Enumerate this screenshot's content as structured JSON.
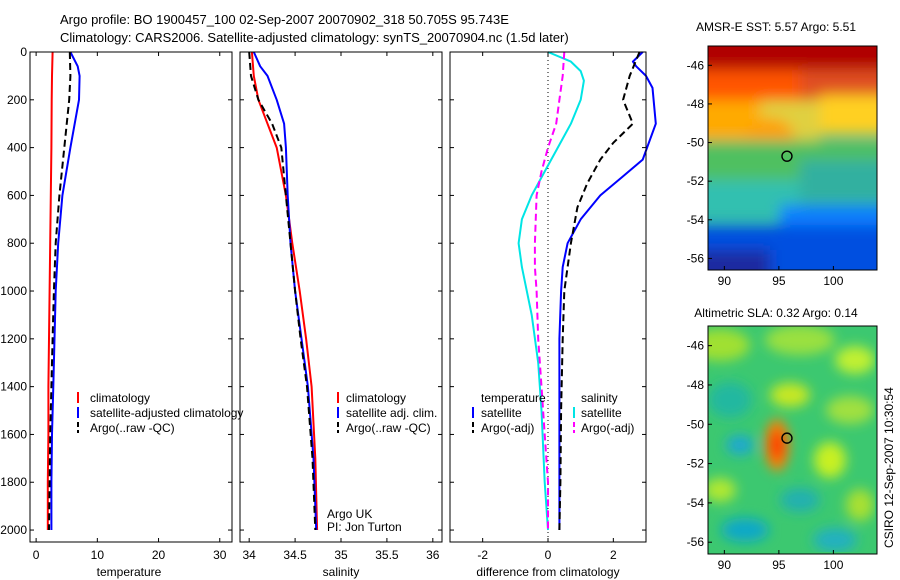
{
  "header": {
    "line1": "Argo profile: BO 1900457_100 02-Sep-2007 20070902_318 50.705S 95.743E",
    "line2": "Climatology: CARS2006. Satellite-adjusted climatology: synTS_20070904.nc (1.5d later)"
  },
  "credit": "CSIRO 12-Sep-2007 10:30:54",
  "colors": {
    "red": "#ff0000",
    "blue": "#0000ff",
    "black": "#000000",
    "cyan": "#00e5e5",
    "magenta": "#ff00ff"
  },
  "chart_data": [
    {
      "type": "line",
      "xlabel": "temperature",
      "xlim": [
        -1,
        32
      ],
      "ylim": [
        0,
        2050
      ],
      "xticks": [
        "0",
        "10",
        "20",
        "30"
      ],
      "xtick_values": [
        0,
        10,
        20,
        30
      ],
      "yticks": [
        "0",
        "200",
        "400",
        "600",
        "800",
        "1000",
        "1200",
        "1400",
        "1600",
        "1800",
        "2000"
      ],
      "y_reversed": true,
      "legend_position": "lower-right",
      "series": [
        {
          "name": "climatology",
          "color": "red",
          "style": "solid",
          "x": [
            2.7,
            2.6,
            2.55,
            2.5,
            2.4,
            2.3,
            2.2,
            2.1,
            2.0,
            2.0,
            1.9,
            1.9
          ],
          "y": [
            0,
            100,
            200,
            400,
            600,
            800,
            1000,
            1200,
            1400,
            1600,
            1800,
            2000
          ]
        },
        {
          "name": "satellite-adjusted climatology",
          "color": "blue",
          "style": "solid",
          "x": [
            5.6,
            6.8,
            7.1,
            7.0,
            5.6,
            4.3,
            3.6,
            3.2,
            3.0,
            2.8,
            2.6,
            2.5,
            2.5
          ],
          "y": [
            0,
            60,
            100,
            200,
            400,
            600,
            800,
            1000,
            1200,
            1400,
            1600,
            1800,
            2000
          ]
        },
        {
          "name": "Argo(..raw -QC)",
          "color": "black",
          "style": "dashed",
          "x": [
            5.5,
            5.6,
            5.4,
            4.6,
            3.8,
            3.2,
            2.9,
            2.7,
            2.5,
            2.3,
            2.2,
            2.1
          ],
          "y": [
            0,
            100,
            200,
            400,
            600,
            800,
            1000,
            1200,
            1400,
            1600,
            1800,
            2000
          ]
        }
      ]
    },
    {
      "type": "line",
      "xlabel": "salinity",
      "xlim": [
        33.9,
        36.1
      ],
      "ylim": [
        0,
        2050
      ],
      "xticks": [
        "34",
        "34.5",
        "35",
        "35.5",
        "36"
      ],
      "xtick_values": [
        34,
        34.5,
        35,
        35.5,
        36
      ],
      "y_reversed": true,
      "legend_position": "lower-right",
      "annotation": [
        "Argo UK",
        "PI: Jon Turton"
      ],
      "series": [
        {
          "name": "climatology",
          "color": "red",
          "style": "solid",
          "x": [
            34.03,
            34.05,
            34.1,
            34.2,
            34.3,
            34.4,
            34.47,
            34.55,
            34.62,
            34.68,
            34.72,
            34.74
          ],
          "y": [
            0,
            100,
            200,
            300,
            400,
            600,
            800,
            1000,
            1200,
            1400,
            1700,
            2000
          ]
        },
        {
          "name": "satellite adj. clim.",
          "color": "blue",
          "style": "solid",
          "x": [
            34.05,
            34.12,
            34.2,
            34.3,
            34.38,
            34.4,
            34.42,
            34.45,
            34.5,
            34.57,
            34.64,
            34.7,
            34.73
          ],
          "y": [
            0,
            60,
            100,
            200,
            300,
            400,
            600,
            800,
            1000,
            1200,
            1400,
            1700,
            2000
          ]
        },
        {
          "name": "Argo(..raw -QC)",
          "color": "black",
          "style": "dashed",
          "x": [
            34.0,
            34.02,
            34.1,
            34.25,
            34.35,
            34.4,
            34.45,
            34.5,
            34.56,
            34.63,
            34.69,
            34.72
          ],
          "y": [
            0,
            100,
            200,
            300,
            400,
            600,
            800,
            1000,
            1200,
            1400,
            1700,
            2000
          ]
        }
      ]
    },
    {
      "type": "line",
      "xlabel": "difference from climatology",
      "xlim": [
        -3,
        3
      ],
      "ylim": [
        0,
        2050
      ],
      "xticks": [
        "-2",
        "0",
        "2"
      ],
      "xtick_values": [
        -2,
        0,
        2
      ],
      "y_reversed": true,
      "legend_position": "lower-center",
      "legend_groups": [
        {
          "title": "temperature",
          "entries": [
            {
              "label": "satellite",
              "color": "blue",
              "style": "solid"
            },
            {
              "label": "Argo(-adj)",
              "color": "black",
              "style": "dashed"
            }
          ]
        },
        {
          "title": "salinity",
          "entries": [
            {
              "label": "satellite",
              "color": "cyan",
              "style": "solid"
            },
            {
              "label": "Argo(-adj)",
              "color": "magenta",
              "style": "dashed"
            }
          ]
        }
      ],
      "series": [
        {
          "name": "temperature satellite",
          "color": "blue",
          "style": "solid",
          "x": [
            2.9,
            2.6,
            2.7,
            3.0,
            3.2,
            3.3,
            2.9,
            2.3,
            1.6,
            1.0,
            0.6,
            0.45,
            0.4,
            0.35,
            0.35,
            0.35,
            0.35
          ],
          "y": [
            0,
            40,
            60,
            100,
            150,
            300,
            450,
            520,
            600,
            700,
            800,
            900,
            1000,
            1200,
            1500,
            1800,
            2000
          ]
        },
        {
          "name": "temperature Argo(-adj)",
          "color": "black",
          "style": "dashed",
          "x": [
            2.8,
            2.5,
            2.3,
            2.6,
            2.0,
            1.6,
            1.2,
            0.9,
            0.7,
            0.6,
            0.5,
            0.45,
            0.4,
            0.38,
            0.35
          ],
          "y": [
            0,
            100,
            200,
            300,
            380,
            450,
            550,
            650,
            800,
            900,
            1000,
            1200,
            1500,
            1800,
            2000
          ]
        },
        {
          "name": "salinity satellite",
          "color": "cyan",
          "style": "solid",
          "x": [
            0.0,
            0.7,
            1.0,
            1.1,
            1.0,
            0.7,
            0.3,
            -0.1,
            -0.5,
            -0.8,
            -0.9,
            -0.8,
            -0.5,
            -0.3,
            -0.2,
            -0.1,
            0.0
          ],
          "y": [
            0,
            40,
            80,
            120,
            200,
            300,
            400,
            500,
            600,
            700,
            800,
            900,
            1100,
            1300,
            1500,
            1800,
            2000
          ]
        },
        {
          "name": "salinity Argo(-adj)",
          "color": "magenta",
          "style": "dashed",
          "x": [
            0.5,
            0.45,
            0.35,
            0.25,
            0.0,
            -0.2,
            -0.35,
            -0.4,
            -0.4,
            -0.35,
            -0.3,
            -0.2,
            -0.1,
            0.0,
            0.0
          ],
          "y": [
            0,
            100,
            200,
            300,
            400,
            500,
            600,
            800,
            900,
            1000,
            1200,
            1400,
            1600,
            1800,
            2000
          ]
        }
      ]
    },
    {
      "type": "heatmap",
      "title": "AMSR-E SST: 5.57 Argo: 5.51",
      "xlim": [
        88.5,
        104
      ],
      "ylim": [
        -56.6,
        -45
      ],
      "xticks": [
        "90",
        "95",
        "100"
      ],
      "xtick_values": [
        90,
        95,
        100
      ],
      "yticks": [
        "-46",
        "-48",
        "-50",
        "-52",
        "-54",
        "-56"
      ],
      "ytick_values": [
        -46,
        -48,
        -50,
        -52,
        -54,
        -56
      ],
      "marker": {
        "lon": 95.743,
        "lat": -50.705
      }
    },
    {
      "type": "heatmap",
      "title": "Altimetric SLA: 0.32 Argo: 0.14",
      "xlim": [
        88.5,
        104
      ],
      "ylim": [
        -56.6,
        -45
      ],
      "xticks": [
        "90",
        "95",
        "100"
      ],
      "xtick_values": [
        90,
        95,
        100
      ],
      "yticks": [
        "-46",
        "-48",
        "-50",
        "-52",
        "-54",
        "-56"
      ],
      "ytick_values": [
        -46,
        -48,
        -50,
        -52,
        -54,
        -56
      ],
      "marker": {
        "lon": 95.743,
        "lat": -50.705
      }
    }
  ]
}
